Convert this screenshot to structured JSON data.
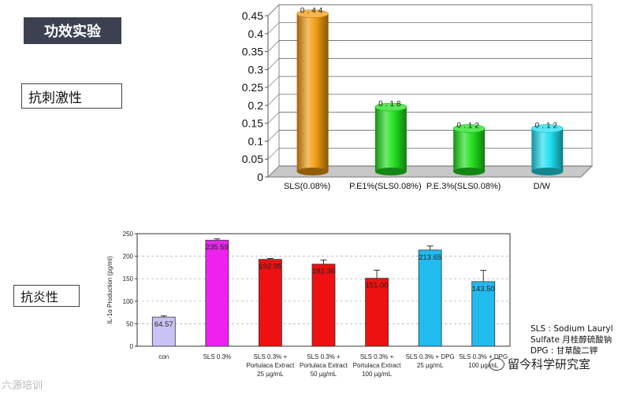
{
  "header": {
    "title": "功效实验"
  },
  "sections": {
    "irritation_label": "抗刺激性",
    "anti_inflammatory_label": "抗炎性"
  },
  "notes": [
    "SLS : Sodium Lauryl",
    "Sulfate 月桂醇硫酸钠",
    "DPG : 甘草酸二钾"
  ],
  "footer": {
    "left_watermark": "六源培训",
    "right_watermark": "留今科学研究室",
    "wechat_icon": "wechat-icon"
  },
  "chart_data": [
    {
      "type": "bar",
      "categories": [
        "SLS(0.08%)",
        "P.E1%(SLS0.08%)",
        "P.E.3%(SLS0.08%)",
        "D/W"
      ],
      "values": [
        0.44,
        0.18,
        0.12,
        0.12
      ],
      "value_labels": [
        "0.44",
        "0.18",
        "0.12",
        "0.12"
      ],
      "colors": [
        "#f39c12",
        "#22e01f",
        "#22e01f",
        "#1fdff0"
      ],
      "ylim": [
        0,
        0.45
      ],
      "yticks": [
        "0",
        "0.05",
        "0.1",
        "0.15",
        "0.2",
        "0.25",
        "0.3",
        "0.35",
        "0.4",
        "0.45"
      ],
      "grid": true
    },
    {
      "type": "bar",
      "categories": [
        [
          "con"
        ],
        [
          "SLS 0.3%"
        ],
        [
          "SLS 0.3% +",
          "Portulaca Extract",
          "25 µg/mL"
        ],
        [
          "SLS 0.3% +",
          "Portulaca Extract",
          "50 µg/mL"
        ],
        [
          "SLS 0.3% +",
          "Portulaca Extract",
          "100 µg/mL"
        ],
        [
          "SLS 0.3% + DPG",
          "25 µg/mL"
        ],
        [
          "SLS 0.3% + DPG",
          "100 µg/mL"
        ]
      ],
      "values": [
        64.57,
        235.59,
        192.95,
        182.36,
        151.0,
        213.65,
        143.5
      ],
      "value_labels": [
        "64.57",
        "235.59",
        "192.95",
        "182.36",
        "151.00",
        "213.65",
        "143.50"
      ],
      "errors": [
        3,
        3,
        2,
        9,
        18,
        9,
        25
      ],
      "colors": [
        "#c9c3f5",
        "#ee22ee",
        "#ee1111",
        "#ee1111",
        "#ee1111",
        "#22bbf0",
        "#22bbf0"
      ],
      "ylabel": "IL-1α Production (pg/ml)",
      "ylim": [
        0,
        250
      ],
      "yticks": [
        "0",
        "50",
        "100",
        "150",
        "200",
        "250"
      ],
      "grid": true
    }
  ]
}
